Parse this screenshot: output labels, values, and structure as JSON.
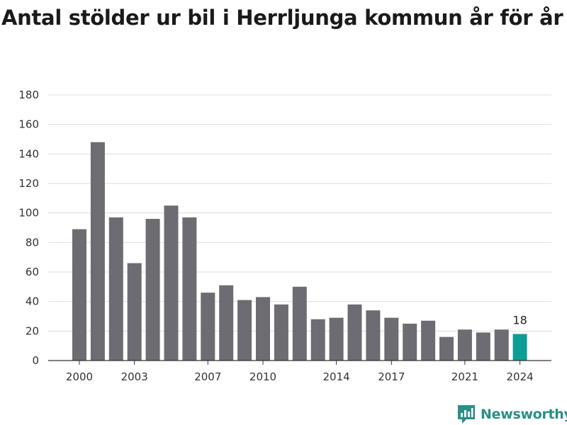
{
  "title": "Antal stölder ur bil i Herrljunga kommun år för år",
  "brand": {
    "name": "Newsworthy",
    "logo_icon": "newsworthy-logo-icon"
  },
  "colors": {
    "bar": "#6d6c73",
    "highlight": "#0e9d94",
    "grid": "#dddddd",
    "axis": "#333333",
    "brand": "#2a8f86"
  },
  "chart_data": {
    "type": "bar",
    "title": "Antal stölder ur bil i Herrljunga kommun år för år",
    "xlabel": "",
    "ylabel": "",
    "categories": [
      "2000",
      "2001",
      "2002",
      "2003",
      "2004",
      "2005",
      "2006",
      "2007",
      "2008",
      "2009",
      "2010",
      "2011",
      "2012",
      "2013",
      "2014",
      "2015",
      "2016",
      "2017",
      "2018",
      "2019",
      "2020",
      "2021",
      "2022",
      "2023",
      "2024"
    ],
    "values": [
      89,
      148,
      97,
      66,
      96,
      105,
      97,
      46,
      51,
      41,
      43,
      38,
      50,
      28,
      29,
      38,
      34,
      29,
      25,
      27,
      16,
      21,
      19,
      21,
      18
    ],
    "highlight_index": 24,
    "highlight_label": "18",
    "x_tick_labels": [
      "2000",
      "2003",
      "2007",
      "2010",
      "2014",
      "2017",
      "2021",
      "2024"
    ],
    "y_ticks": [
      0,
      20,
      40,
      60,
      80,
      100,
      120,
      140,
      160,
      180
    ],
    "ylim": [
      0,
      180
    ],
    "grid": true,
    "legend": "none"
  }
}
